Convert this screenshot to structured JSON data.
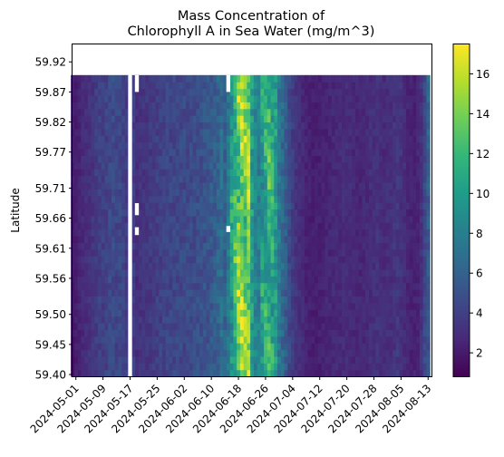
{
  "chart_data": {
    "type": "heatmap",
    "title_lines": [
      "Mass Concentration of",
      "Chlorophyll A in Sea Water (mg/m^3)"
    ],
    "xlabel": "",
    "ylabel": "Latitude",
    "colormap": "viridis",
    "colormap_stops": [
      "#440154",
      "#482878",
      "#3e4989",
      "#31688e",
      "#26828e",
      "#1f9e89",
      "#35b779",
      "#6ece58",
      "#b5de2b",
      "#fde725"
    ],
    "colorbar": {
      "min": 0.8,
      "max": 17.5,
      "ticks": [
        2,
        4,
        6,
        8,
        10,
        12,
        14,
        16
      ]
    },
    "x_ticks": [
      "2024-05-01",
      "2024-05-09",
      "2024-05-17",
      "2024-05-25",
      "2024-06-02",
      "2024-06-10",
      "2024-06-18",
      "2024-06-26",
      "2024-07-04",
      "2024-07-12",
      "2024-07-20",
      "2024-07-28",
      "2024-08-05",
      "2024-08-13"
    ],
    "y_ticks": [
      "59.92",
      "59.87",
      "59.82",
      "59.77",
      "59.71",
      "59.66",
      "59.61",
      "59.56",
      "59.50",
      "59.45",
      "59.40"
    ],
    "x_range": [
      "2024-04-30",
      "2024-08-14"
    ],
    "y_range": [
      59.397,
      59.949
    ],
    "data_y_range": [
      59.397,
      59.898
    ],
    "grid": false,
    "day_profile": [
      [
        "2024-04-30",
        2.0
      ],
      [
        "2024-05-01",
        2.2
      ],
      [
        "2024-05-02",
        2.5
      ],
      [
        "2024-05-03",
        2.8
      ],
      [
        "2024-05-04",
        3.0
      ],
      [
        "2024-05-05",
        3.2
      ],
      [
        "2024-05-06",
        3.4
      ],
      [
        "2024-05-07",
        3.8
      ],
      [
        "2024-05-08",
        4.0
      ],
      [
        "2024-05-09",
        4.0
      ],
      [
        "2024-05-10",
        4.2
      ],
      [
        "2024-05-11",
        4.5
      ],
      [
        "2024-05-12",
        4.6
      ],
      [
        "2024-05-13",
        4.3
      ],
      [
        "2024-05-14",
        4.5
      ],
      [
        "2024-05-15",
        4.2
      ],
      [
        "2024-05-16",
        3.8
      ],
      [
        "2024-05-17",
        null
      ],
      [
        "2024-05-18",
        3.8
      ],
      [
        "2024-05-19",
        3.0
      ],
      [
        "2024-05-20",
        3.3
      ],
      [
        "2024-05-21",
        3.4
      ],
      [
        "2024-05-22",
        3.5
      ],
      [
        "2024-05-23",
        3.6
      ],
      [
        "2024-05-24",
        3.7
      ],
      [
        "2024-05-25",
        3.9
      ],
      [
        "2024-05-26",
        4.0
      ],
      [
        "2024-05-27",
        4.2
      ],
      [
        "2024-05-28",
        4.3
      ],
      [
        "2024-05-29",
        4.3
      ],
      [
        "2024-05-30",
        4.4
      ],
      [
        "2024-05-31",
        4.4
      ],
      [
        "2024-06-01",
        4.5
      ],
      [
        "2024-06-02",
        4.5
      ],
      [
        "2024-06-03",
        4.6
      ],
      [
        "2024-06-04",
        4.6
      ],
      [
        "2024-06-05",
        4.7
      ],
      [
        "2024-06-06",
        4.8
      ],
      [
        "2024-06-07",
        4.9
      ],
      [
        "2024-06-08",
        5.0
      ],
      [
        "2024-06-09",
        5.2
      ],
      [
        "2024-06-10",
        5.4
      ],
      [
        "2024-06-11",
        5.7
      ],
      [
        "2024-06-12",
        6.2
      ],
      [
        "2024-06-13",
        6.8
      ],
      [
        "2024-06-14",
        6.0
      ],
      [
        "2024-06-15",
        7.5
      ],
      [
        "2024-06-16",
        11.0
      ],
      [
        "2024-06-17",
        13.0
      ],
      [
        "2024-06-18",
        15.0
      ],
      [
        "2024-06-19",
        16.0
      ],
      [
        "2024-06-20",
        14.5
      ],
      [
        "2024-06-21",
        15.5
      ],
      [
        "2024-06-22",
        10.0
      ],
      [
        "2024-06-23",
        8.5
      ],
      [
        "2024-06-24",
        8.0
      ],
      [
        "2024-06-25",
        10.5
      ],
      [
        "2024-06-26",
        11.5
      ],
      [
        "2024-06-27",
        12.5
      ],
      [
        "2024-06-28",
        12.0
      ],
      [
        "2024-06-29",
        10.0
      ],
      [
        "2024-06-30",
        7.5
      ],
      [
        "2024-07-01",
        6.5
      ],
      [
        "2024-07-02",
        5.5
      ],
      [
        "2024-07-03",
        4.5
      ],
      [
        "2024-07-04",
        3.8
      ],
      [
        "2024-07-05",
        3.3
      ],
      [
        "2024-07-06",
        3.0
      ],
      [
        "2024-07-07",
        2.8
      ],
      [
        "2024-07-08",
        2.4
      ],
      [
        "2024-07-09",
        2.3
      ],
      [
        "2024-07-10",
        2.2
      ],
      [
        "2024-07-11",
        2.2
      ],
      [
        "2024-07-12",
        2.3
      ],
      [
        "2024-07-13",
        2.4
      ],
      [
        "2024-07-14",
        2.5
      ],
      [
        "2024-07-15",
        2.6
      ],
      [
        "2024-07-16",
        2.7
      ],
      [
        "2024-07-17",
        2.8
      ],
      [
        "2024-07-18",
        2.8
      ],
      [
        "2024-07-19",
        2.9
      ],
      [
        "2024-07-20",
        3.0
      ],
      [
        "2024-07-21",
        2.9
      ],
      [
        "2024-07-22",
        2.8
      ],
      [
        "2024-07-23",
        2.7
      ],
      [
        "2024-07-24",
        2.6
      ],
      [
        "2024-07-25",
        2.7
      ],
      [
        "2024-07-26",
        2.8
      ],
      [
        "2024-07-27",
        3.0
      ],
      [
        "2024-07-28",
        3.1
      ],
      [
        "2024-07-29",
        3.2
      ],
      [
        "2024-07-30",
        3.0
      ],
      [
        "2024-07-31",
        2.9
      ],
      [
        "2024-08-01",
        3.0
      ],
      [
        "2024-08-02",
        3.1
      ],
      [
        "2024-08-03",
        3.3
      ],
      [
        "2024-08-04",
        3.5
      ],
      [
        "2024-08-05",
        3.2
      ],
      [
        "2024-08-06",
        2.9
      ],
      [
        "2024-08-07",
        2.6
      ],
      [
        "2024-08-08",
        2.4
      ],
      [
        "2024-08-09",
        2.4
      ],
      [
        "2024-08-10",
        2.6
      ],
      [
        "2024-08-11",
        3.2
      ],
      [
        "2024-08-12",
        4.5
      ],
      [
        "2024-08-13",
        5.5
      ]
    ],
    "missing_cells": [
      {
        "date": "2024-05-17",
        "lat_range": [
          59.397,
          59.898
        ]
      },
      {
        "date": "2024-05-19",
        "lat_range": [
          59.87,
          59.898
        ]
      },
      {
        "date": "2024-05-19",
        "lat_range": [
          59.665,
          59.685
        ]
      },
      {
        "date": "2024-05-19",
        "lat_range": [
          59.632,
          59.645
        ]
      },
      {
        "date": "2024-06-15",
        "lat_range": [
          59.87,
          59.898
        ]
      },
      {
        "date": "2024-06-15",
        "lat_range": [
          59.637,
          59.647
        ]
      }
    ]
  }
}
